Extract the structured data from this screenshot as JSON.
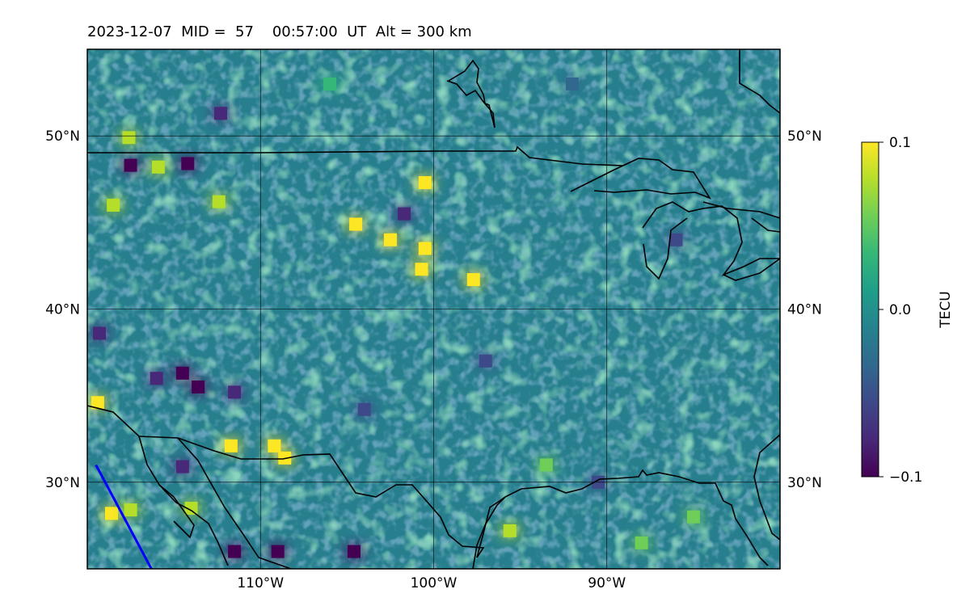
{
  "header": {
    "date": "2023-12-07",
    "mid_label": "MID =",
    "mid_value": "57",
    "time": "00:57:00",
    "time_unit": "UT",
    "alt_label": "Alt = 300 km"
  },
  "map": {
    "projection": "equirectangular",
    "lon_range": [
      -120,
      -80
    ],
    "lat_range": [
      25,
      55
    ],
    "lat_ticks_left": [
      "50°N",
      "40°N",
      "30°N"
    ],
    "lat_ticks_right": [
      "50°N",
      "40°N",
      "30°N"
    ],
    "lon_ticks": [
      "110°W",
      "100°W",
      "90°W"
    ],
    "lat_tick_values": [
      50,
      40,
      30
    ],
    "lon_tick_values": [
      -110,
      -100,
      -90
    ],
    "gridlines": true,
    "coastline_color": "#000000",
    "track_color": "#0000ff",
    "track": [
      [
        -119.5,
        31.0
      ],
      [
        -116.3,
        25.0
      ]
    ],
    "anomalies": [
      {
        "lon": -118.6,
        "lat": 28.2,
        "value": 0.1
      },
      {
        "lon": -117.5,
        "lat": 28.4,
        "value": 0.08
      },
      {
        "lon": -114.0,
        "lat": 28.5,
        "value": 0.08
      },
      {
        "lon": -111.7,
        "lat": 32.1,
        "value": 0.1
      },
      {
        "lon": -109.2,
        "lat": 32.1,
        "value": 0.1
      },
      {
        "lon": -108.6,
        "lat": 31.4,
        "value": 0.1
      },
      {
        "lon": -119.4,
        "lat": 34.6,
        "value": 0.09
      },
      {
        "lon": -100.5,
        "lat": 43.5,
        "value": 0.1
      },
      {
        "lon": -100.7,
        "lat": 42.3,
        "value": 0.1
      },
      {
        "lon": -97.7,
        "lat": 41.7,
        "value": 0.1
      },
      {
        "lon": -102.5,
        "lat": 44.0,
        "value": 0.1
      },
      {
        "lon": -104.5,
        "lat": 44.9,
        "value": 0.09
      },
      {
        "lon": -100.5,
        "lat": 47.3,
        "value": 0.09
      },
      {
        "lon": -112.4,
        "lat": 46.2,
        "value": 0.08
      },
      {
        "lon": -115.9,
        "lat": 48.2,
        "value": 0.08
      },
      {
        "lon": -118.5,
        "lat": 46.0,
        "value": 0.07
      },
      {
        "lon": -114.5,
        "lat": 36.3,
        "value": -0.1
      },
      {
        "lon": -113.6,
        "lat": 35.5,
        "value": -0.1
      },
      {
        "lon": -116.0,
        "lat": 36.0,
        "value": -0.08
      },
      {
        "lon": -111.5,
        "lat": 35.2,
        "value": -0.08
      },
      {
        "lon": -114.2,
        "lat": 48.4,
        "value": -0.09
      },
      {
        "lon": -117.5,
        "lat": 48.3,
        "value": -0.1
      },
      {
        "lon": -104.6,
        "lat": 26.0,
        "value": -0.1
      },
      {
        "lon": -111.5,
        "lat": 26.0,
        "value": -0.09
      },
      {
        "lon": -109.0,
        "lat": 26.0,
        "value": -0.09
      },
      {
        "lon": -114.5,
        "lat": 30.9,
        "value": -0.08
      },
      {
        "lon": -112.3,
        "lat": 51.3,
        "value": -0.07
      },
      {
        "lon": -101.7,
        "lat": 45.5,
        "value": -0.07
      },
      {
        "lon": -119.3,
        "lat": 38.6,
        "value": -0.08
      },
      {
        "lon": -104.0,
        "lat": 34.2,
        "value": -0.06
      },
      {
        "lon": -97.0,
        "lat": 37.0,
        "value": -0.06
      },
      {
        "lon": -117.6,
        "lat": 49.9,
        "value": 0.08
      },
      {
        "lon": -106.0,
        "lat": 53.0,
        "value": 0.03
      },
      {
        "lon": -92.0,
        "lat": 53.0,
        "value": -0.03
      },
      {
        "lon": -85.0,
        "lat": 28.0,
        "value": 0.05
      },
      {
        "lon": -88.0,
        "lat": 26.5,
        "value": 0.05
      },
      {
        "lon": -93.5,
        "lat": 31.0,
        "value": 0.06
      },
      {
        "lon": -95.6,
        "lat": 27.2,
        "value": 0.07
      },
      {
        "lon": -90.5,
        "lat": 30.0,
        "value": -0.05
      },
      {
        "lon": -86.0,
        "lat": 44.0,
        "value": -0.05
      }
    ]
  },
  "colorbar": {
    "label": "TECU",
    "ticks": [
      "0.1",
      "0.0",
      "−0.1"
    ],
    "tick_values": [
      0.1,
      0.0,
      -0.1
    ],
    "colormap": "viridis",
    "colors": [
      "#440154",
      "#482878",
      "#3e4989",
      "#31688e",
      "#26828e",
      "#1f9e89",
      "#35b779",
      "#6ece58",
      "#b5de2b",
      "#fde725"
    ]
  }
}
